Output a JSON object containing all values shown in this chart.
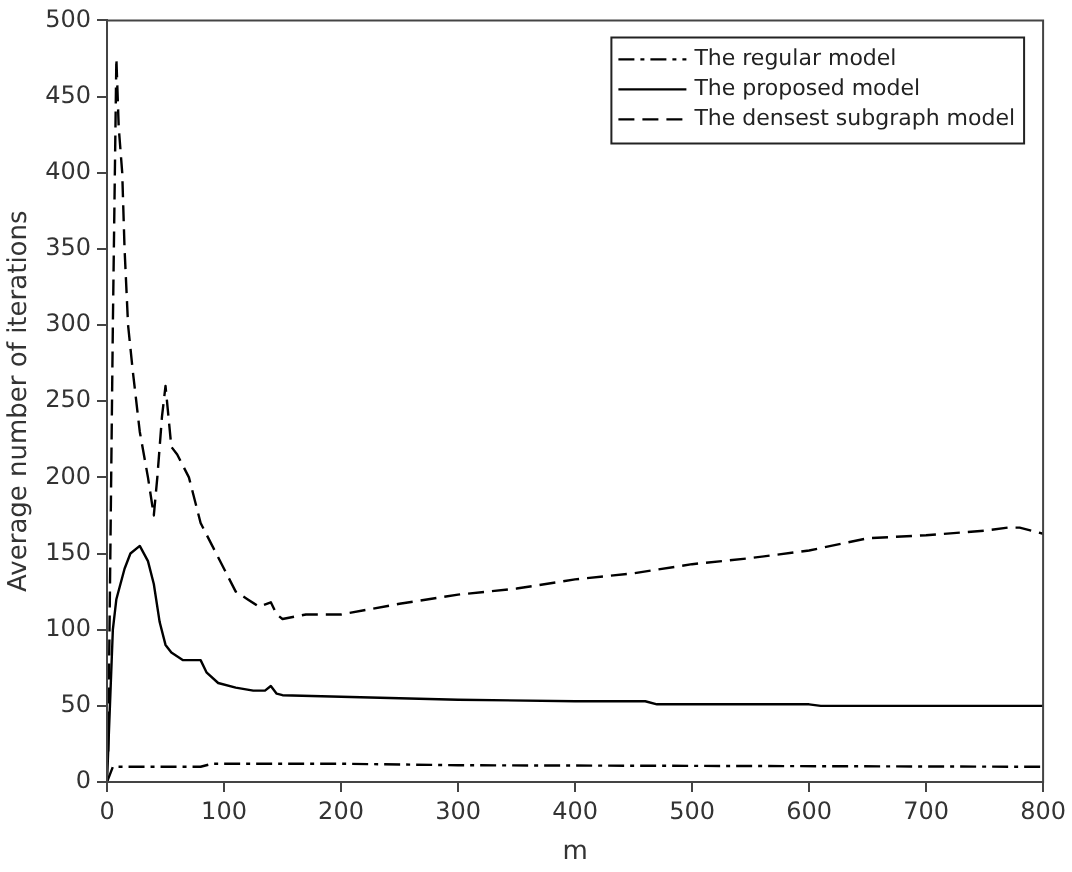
{
  "chart_data": {
    "type": "line",
    "xlabel": "m",
    "ylabel": "Average number of iterations",
    "xlim": [
      0,
      800
    ],
    "xticks": [
      0,
      100,
      200,
      300,
      400,
      500,
      600,
      700,
      800
    ],
    "ylim": [
      0,
      500
    ],
    "yticks": [
      0,
      50,
      100,
      150,
      200,
      250,
      300,
      350,
      400,
      450,
      500
    ],
    "grid": false,
    "legend": "top right",
    "marker": "none",
    "series": [
      {
        "name": "The regular model",
        "color": "#000000",
        "line_style": "dashdot",
        "x": [
          0,
          5,
          50,
          80,
          90,
          200,
          300,
          800
        ],
        "values": [
          0,
          10,
          10,
          10,
          12,
          12,
          11,
          10
        ]
      },
      {
        "name": "The proposed model",
        "color": "#000000",
        "line_style": "solid",
        "x": [
          0,
          3,
          5,
          8,
          15,
          20,
          28,
          35,
          40,
          45,
          50,
          55,
          65,
          75,
          80,
          85,
          95,
          110,
          125,
          135,
          140,
          145,
          150,
          200,
          300,
          400,
          460,
          470,
          600,
          610,
          800
        ],
        "values": [
          0,
          60,
          100,
          120,
          140,
          150,
          155,
          145,
          130,
          105,
          90,
          85,
          80,
          80,
          80,
          72,
          65,
          62,
          60,
          60,
          63,
          58,
          57,
          56,
          54,
          53,
          53,
          51,
          51,
          50,
          50
        ]
      },
      {
        "name": "The densest subgraph model",
        "color": "#000000",
        "line_style": "dashed",
        "x": [
          1,
          5,
          8,
          10,
          13,
          15,
          18,
          22,
          28,
          35,
          40,
          43,
          47,
          50,
          55,
          60,
          70,
          80,
          90,
          100,
          110,
          120,
          130,
          140,
          145,
          150,
          170,
          200,
          250,
          300,
          350,
          400,
          450,
          500,
          550,
          600,
          650,
          700,
          750,
          770,
          780,
          800
        ],
        "values": [
          20,
          300,
          475,
          430,
          400,
          350,
          300,
          270,
          230,
          200,
          175,
          200,
          240,
          260,
          220,
          215,
          200,
          170,
          155,
          140,
          125,
          120,
          115,
          118,
          110,
          107,
          110,
          110,
          117,
          123,
          127,
          133,
          137,
          143,
          147,
          152,
          160,
          162,
          165,
          167,
          167,
          163
        ]
      }
    ]
  }
}
